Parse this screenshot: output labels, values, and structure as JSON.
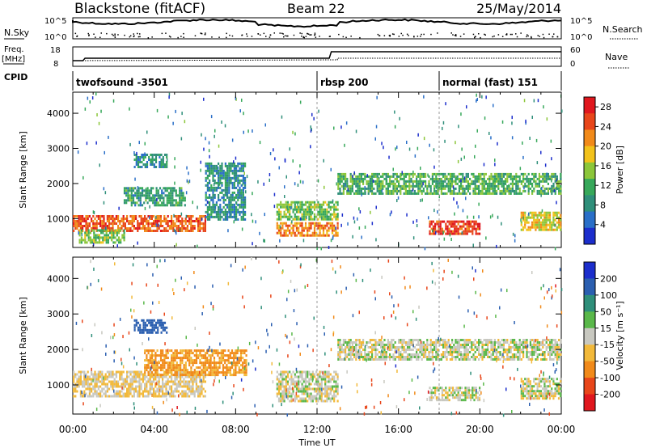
{
  "header": {
    "station": "Blackstone (fitACF)",
    "beam": "Beam 22",
    "date": "25/May/2014"
  },
  "summary_panels": {
    "nsky": {
      "label": "N.Sky",
      "tick_top": "10^5",
      "tick_bottom": "10^0"
    },
    "nsearch": {
      "label": "N.Search",
      "tick_top": "10^5",
      "tick_bottom": "10^0"
    },
    "freq": {
      "label_line1": "Freq.",
      "label_line2": "[MHz]",
      "tick_top": "18",
      "tick_bottom": "8"
    },
    "nave": {
      "label": "Nave",
      "tick_top": "60",
      "tick_bottom": "0"
    },
    "cpid": {
      "label": "CPID"
    }
  },
  "cpid_segments": [
    {
      "name": "twofsound",
      "id": "-3501",
      "start_hour": 0
    },
    {
      "name": "rbsp",
      "id": "200",
      "start_hour": 12
    },
    {
      "name": "normal (fast)",
      "id": "151",
      "start_hour": 18
    }
  ],
  "colors": {
    "power_scale": [
      "#1c2ecc",
      "#2a6fc8",
      "#2f8f7a",
      "#37a85a",
      "#8cc63a",
      "#f2c21b",
      "#f18a1a",
      "#e8461a",
      "#e0171e"
    ],
    "velocity_scale": [
      "#1c2ecc",
      "#2b5fb0",
      "#2f8f7a",
      "#5ab84a",
      "#c8c8c0",
      "#f2b93a",
      "#f18a1a",
      "#e8461a",
      "#e0171e"
    ]
  },
  "chart_data": [
    {
      "type": "heatmap",
      "name": "power",
      "ylabel": "Slant Range [km]",
      "xlabel": "Time UT",
      "x_ticks": [
        "00:00",
        "04:00",
        "08:00",
        "12:00",
        "16:00",
        "20:00",
        "00:00"
      ],
      "x_range_hours": [
        0,
        24
      ],
      "y_ticks": [
        1000,
        2000,
        3000,
        4000
      ],
      "ylim": [
        180,
        4600
      ],
      "colorbar": {
        "label": "Power [dB]",
        "ticks": [
          4,
          8,
          12,
          16,
          20,
          24,
          28
        ],
        "range": [
          0,
          30
        ]
      },
      "echo_regions": [
        {
          "t_start": 0.0,
          "t_end": 6.5,
          "r_start": 650,
          "r_end": 1100,
          "value": 24
        },
        {
          "t_start": 0.3,
          "t_end": 2.5,
          "r_start": 350,
          "r_end": 700,
          "value": 14
        },
        {
          "t_start": 2.5,
          "t_end": 5.5,
          "r_start": 1400,
          "r_end": 1900,
          "value": 10
        },
        {
          "t_start": 3.0,
          "t_end": 4.6,
          "r_start": 2500,
          "r_end": 2850,
          "value": 8
        },
        {
          "t_start": 6.5,
          "t_end": 8.5,
          "r_start": 1000,
          "r_end": 2600,
          "value": 8
        },
        {
          "t_start": 10.0,
          "t_end": 13.0,
          "r_start": 550,
          "r_end": 900,
          "value": 22
        },
        {
          "t_start": 10.0,
          "t_end": 13.0,
          "r_start": 1000,
          "r_end": 1500,
          "value": 14
        },
        {
          "t_start": 13.0,
          "t_end": 24.0,
          "r_start": 1700,
          "r_end": 2300,
          "value": 12
        },
        {
          "t_start": 17.5,
          "t_end": 20.0,
          "r_start": 600,
          "r_end": 950,
          "value": 26
        },
        {
          "t_start": 22.0,
          "t_end": 24.0,
          "r_start": 650,
          "r_end": 1200,
          "value": 18
        }
      ]
    },
    {
      "type": "heatmap",
      "name": "velocity",
      "ylabel": "Slant Range [km]",
      "xlabel": "Time UT",
      "x_ticks": [
        "00:00",
        "04:00",
        "08:00",
        "12:00",
        "16:00",
        "20:00",
        "00:00"
      ],
      "x_range_hours": [
        0,
        24
      ],
      "y_ticks": [
        1000,
        2000,
        3000,
        4000
      ],
      "ylim": [
        180,
        4600
      ],
      "colorbar": {
        "label": "Velocity [m s⁻¹]",
        "ticks": [
          200,
          100,
          50,
          15,
          -15,
          -50,
          -100,
          -200
        ]
      },
      "echo_regions": [
        {
          "t_start": 0.0,
          "t_end": 6.5,
          "r_start": 650,
          "r_end": 1400,
          "value": -15
        },
        {
          "t_start": 3.5,
          "t_end": 8.5,
          "r_start": 1300,
          "r_end": 2000,
          "value": -60
        },
        {
          "t_start": 3.0,
          "t_end": 4.6,
          "r_start": 2500,
          "r_end": 2850,
          "value": 150
        },
        {
          "t_start": 10.0,
          "t_end": 13.0,
          "r_start": 550,
          "r_end": 1400,
          "value": 0
        },
        {
          "t_start": 13.0,
          "t_end": 24.0,
          "r_start": 1700,
          "r_end": 2300,
          "value": 0
        },
        {
          "t_start": 17.5,
          "t_end": 20.0,
          "r_start": 600,
          "r_end": 950,
          "value": 0
        },
        {
          "t_start": 22.0,
          "t_end": 24.0,
          "r_start": 650,
          "r_end": 1200,
          "value": 0
        }
      ]
    }
  ]
}
